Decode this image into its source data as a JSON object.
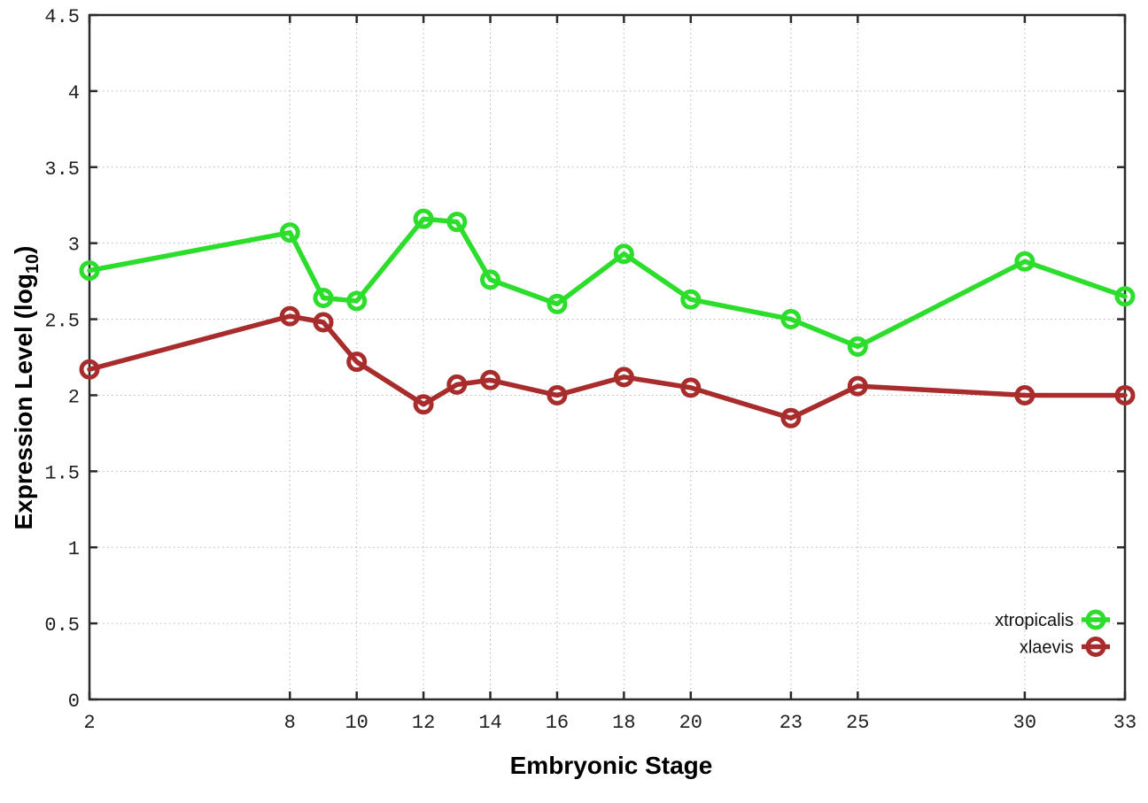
{
  "figure": {
    "background": "#ffffff",
    "xlabel": "Embryonic Stage",
    "ylabel_prefix": "Expression Level (log",
    "ylabel_sub": "10",
    "ylabel_suffix": ")"
  },
  "colors": {
    "grid": "#b4b4bd",
    "axis": "#2b2b2b",
    "tick_text": "#1f1f1f",
    "xtropicalis": "#2cdd2c",
    "xlaevis": "#a82c2c"
  },
  "chart_data": {
    "type": "line",
    "title": "",
    "xlabel": "Embryonic Stage",
    "ylabel": "Expression Level (log10)",
    "x": [
      2,
      8,
      9,
      10,
      12,
      13,
      14,
      16,
      18,
      20,
      23,
      25,
      30,
      33
    ],
    "series": [
      {
        "name": "xtropicalis",
        "color": "#2cdd2c",
        "values": [
          2.82,
          3.07,
          2.64,
          2.62,
          3.16,
          3.14,
          2.76,
          2.6,
          2.93,
          2.63,
          2.5,
          2.32,
          2.88,
          2.65
        ]
      },
      {
        "name": "xlaevis",
        "color": "#a82c2c",
        "values": [
          2.17,
          2.52,
          2.48,
          2.22,
          1.94,
          2.07,
          2.1,
          2.0,
          2.12,
          2.05,
          1.85,
          2.06,
          2.0,
          2.0
        ]
      }
    ],
    "xlim": [
      2,
      33
    ],
    "ylim": [
      0,
      4.5
    ],
    "xticks": [
      2,
      8,
      10,
      12,
      14,
      16,
      18,
      20,
      23,
      25,
      30,
      33
    ],
    "xtick_labels": [
      "2",
      "8",
      "10",
      "12",
      "14",
      "16",
      "18",
      "20",
      "23",
      "25",
      "30",
      "33"
    ],
    "yticks": [
      0,
      0.5,
      1,
      1.5,
      2,
      2.5,
      3,
      3.5,
      4,
      4.5
    ],
    "ytick_labels": [
      "0",
      "0.5",
      "1",
      "1.5",
      "2",
      "2.5",
      "3",
      "3.5",
      "4",
      "4.5"
    ],
    "grid": true,
    "marker": "open-circle",
    "legend_position": "bottom-right",
    "legend_entries": [
      "xtropicalis",
      "xlaevis"
    ]
  }
}
